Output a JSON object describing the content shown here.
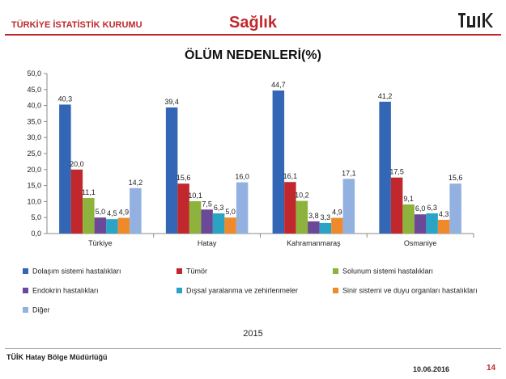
{
  "header": {
    "organization": "TÜRKİYE İSTATİSTİK KURUMU",
    "section_title": "Sağlık",
    "logo_text": "TÜİK"
  },
  "chart_data": {
    "type": "bar",
    "title": "ÖLÜM NEDENLERİ(%)",
    "categories": [
      "Türkiye",
      "Hatay",
      "Kahramanmaraş",
      "Osmaniye"
    ],
    "series": [
      {
        "name": "Dolaşım sistemi hastalıkları",
        "color": "#3366b5",
        "values": [
          40.3,
          39.4,
          44.7,
          41.2
        ],
        "labels": [
          "40,3",
          "39,4",
          "44,7",
          "41,2"
        ]
      },
      {
        "name": "Tümör",
        "color": "#c0282d",
        "values": [
          20.0,
          15.6,
          16.1,
          17.5
        ],
        "labels": [
          "20,0",
          "15,6",
          "16,1",
          "17,5"
        ]
      },
      {
        "name": "Solunum sistemi hastalıkları",
        "color": "#8db33c",
        "values": [
          11.1,
          10.1,
          10.2,
          9.1
        ],
        "labels": [
          "11,1",
          "10,1",
          "10,2",
          "9,1"
        ]
      },
      {
        "name": "Endokrin hastalıkları",
        "color": "#6b4898",
        "values": [
          5.0,
          7.5,
          3.8,
          6.0
        ],
        "labels": [
          "5,0",
          "7,5",
          "3,8",
          "6,0"
        ]
      },
      {
        "name": "Dışsal yaralanma ve zehirlenmeler",
        "color": "#2aa3c4",
        "values": [
          4.5,
          6.3,
          3.3,
          6.3
        ],
        "labels": [
          "4,5",
          "6,3",
          "3,3",
          "6,3"
        ]
      },
      {
        "name": "Sinir sistemi ve duyu organları hastalıkları",
        "color": "#ee8a2c",
        "values": [
          4.9,
          5.0,
          4.9,
          4.3
        ],
        "labels": [
          "4,9",
          "5,0",
          "4,9",
          "4,3"
        ]
      },
      {
        "name": "Diğer",
        "color": "#93b1e0",
        "values": [
          14.2,
          16.0,
          17.1,
          15.6
        ],
        "labels": [
          "14,2",
          "16,0",
          "17,1",
          "15,6"
        ]
      }
    ],
    "ylim": [
      0,
      50
    ],
    "yticks": [
      "0,0",
      "5,0",
      "10,0",
      "15,0",
      "20,0",
      "25,0",
      "30,0",
      "35,0",
      "40,0",
      "45,0",
      "50,0"
    ],
    "grid": false,
    "legend_position": "bottom",
    "annotation": "2015"
  },
  "footer": {
    "office": "TÜİK Hatay Bölge Müdürlüğü",
    "date": "10.06.2016",
    "page": "14"
  }
}
